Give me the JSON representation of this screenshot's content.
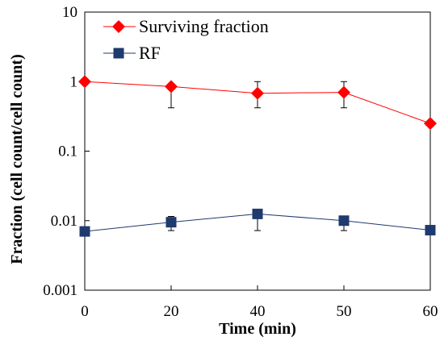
{
  "chart_data": {
    "type": "line",
    "xlabel": "Time (min)",
    "ylabel": "Fraction (cell count/cell count)",
    "x_categories": [
      "0",
      "20",
      "40",
      "50",
      "60"
    ],
    "y_scale": "log",
    "ylim": [
      0.001,
      10
    ],
    "y_ticks": [
      {
        "value": 10,
        "label": "10"
      },
      {
        "value": 1,
        "label": "1"
      },
      {
        "value": 0.1,
        "label": "0.1"
      },
      {
        "value": 0.01,
        "label": "0.01"
      },
      {
        "value": 0.001,
        "label": "0.001"
      }
    ],
    "grid": false,
    "legend_position": "top-left",
    "series": [
      {
        "name": "Surviving fraction",
        "color": "#ff0000",
        "marker": "diamond",
        "values": [
          1.0,
          0.85,
          0.68,
          0.7,
          0.25
        ],
        "error_low": [
          null,
          0.42,
          0.42,
          0.42,
          null
        ],
        "error_high": [
          null,
          null,
          1.0,
          1.0,
          null
        ]
      },
      {
        "name": "RF",
        "color": "#1f3a6e",
        "marker": "square",
        "values": [
          0.007,
          0.0095,
          0.0125,
          0.01,
          0.0073
        ],
        "error_low": [
          null,
          0.0072,
          0.0072,
          0.0072,
          null
        ],
        "error_high": [
          null,
          0.0115,
          0.013,
          0.0115,
          null
        ]
      }
    ]
  }
}
